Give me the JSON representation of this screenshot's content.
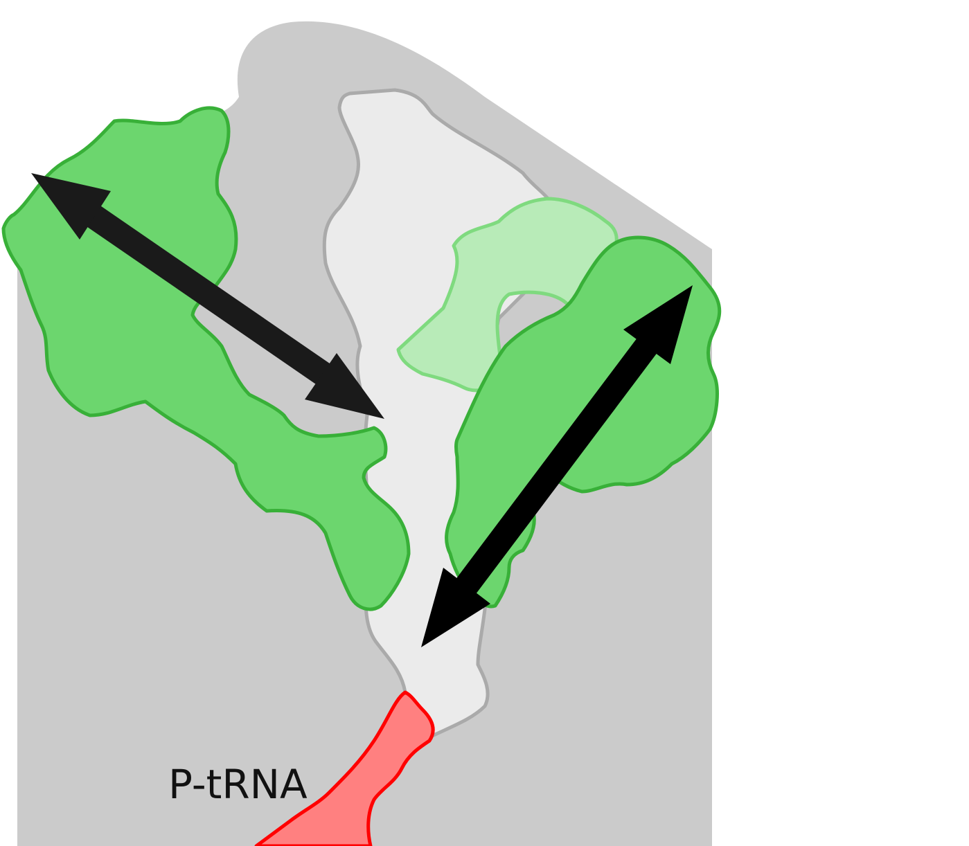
{
  "labels": {
    "p_trna": "P-tRNA"
  },
  "colors": {
    "background": "#ffffff",
    "ribosome_body": "#cbcbcb",
    "tunnel_fill": "#ebebeb",
    "tunnel_stroke": "#aaaaaa",
    "protein_fill": "#6cd66e",
    "protein_stroke": "#38b038",
    "protein_faded_fill": "#b8ebb8",
    "protein_faded_stroke": "#7fda7f",
    "trna_fill": "#ff8080",
    "trna_stroke": "#ff0000",
    "arrow": "#1a1a1a"
  }
}
